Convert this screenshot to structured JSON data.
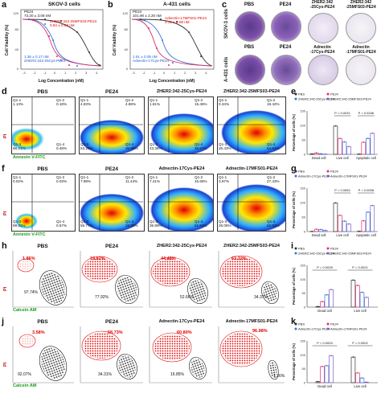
{
  "panel_letters": [
    "a",
    "b",
    "c",
    "d",
    "e",
    "f",
    "g",
    "h",
    "i",
    "j",
    "k"
  ],
  "panel_a": {
    "title": "SKOV-3 cells",
    "ylabel": "Cell Viability (%)",
    "xlabel": "Log Concentration (nM)",
    "ic50_pe24": "PE24\n73.20 ± 3.08 nM",
    "ic50_25m": "ZHER2:342-25MFS03-PE24\n0.94 ± 0.03 nM",
    "ic50_25c": "1.36 ± 0.17 nM\nZHER2:342-25Cys-PE24",
    "xticks": [
      "-3",
      "-2",
      "-1",
      "0",
      "1",
      "2",
      "3",
      "4"
    ],
    "yticks": [
      "0",
      "20",
      "40",
      "60",
      "80",
      "100",
      "120"
    ]
  },
  "panel_b": {
    "title": "A-431 cells",
    "ylabel": "Cell Viability (%)",
    "xlabel": "Log Concentration (nM)",
    "ic50_pe24": "PE24\n101.90 ± 2.20 nM",
    "ic50_17m": "Adnectin-17MFS01-PE24\n0.31 ± 0.08 nM",
    "ic50_17c": "1.51 ± 0.05 nM\nAdnectin-17Cys-PE24",
    "xticks": [
      "-3",
      "-2",
      "-1",
      "0",
      "1",
      "2",
      "3",
      "4"
    ],
    "yticks": [
      "0",
      "20",
      "40",
      "60",
      "80",
      "100",
      "120"
    ]
  },
  "panel_c": {
    "row1_label": "SKOV-3 cells",
    "row2_label": "A-431 cells",
    "row1": [
      "PBS",
      "PE24",
      "ZHER2:342\n-25Cys-PE24",
      "ZHER2:342\n-25MFS03-PE24"
    ],
    "row2": [
      "PBS",
      "PE24",
      "Adnectin\n-17Cys-PE24",
      "Adnectin\n-17MFS01-PE24"
    ]
  },
  "panel_d": {
    "titles": [
      "PBS",
      "PE24",
      "ZHER2:342-25Cys-PE24",
      "ZHER2:342-25MFS03-PE24"
    ],
    "ylabel": "PI",
    "xlabel": "Annexin V-FITC",
    "quads": [
      [
        "Q1-1\n1.13%",
        "Q1-2\n0.18%",
        "Q1-3\n98.21%",
        "Q1-4\n0.48%"
      ],
      [
        "Q1-1\n4.83%",
        "Q1-2\n4.88%",
        "Q1-3\n53.29%",
        "Q1-4\n36.98%"
      ],
      [
        "Q1-1\n1.61%",
        "Q1-2\n15.45%",
        "Q1-3\n43.38%",
        "Q1-4\n39.57%"
      ],
      [
        "Q1-1\n0.34%",
        "Q1-2\n18.42%",
        "Q1-3\n26.43%",
        "Q1-4\n54.81%"
      ]
    ]
  },
  "panel_f": {
    "titles": [
      "PBS",
      "PE24",
      "Adnectin-17Cys-PE24",
      "Adnectin-17MFS01-PE24"
    ],
    "ylabel": "PI",
    "xlabel": "Annexin V-FITC",
    "quads": [
      [
        "Q1-1\n0.02%",
        "Q1-2\n0.03%",
        "Q1-3\n99.31%",
        "Q1-4\n0.57%"
      ],
      [
        "Q1-1\n7.99%",
        "Q1-2\n11.44%",
        "Q1-3\n55.77%",
        "Q1-4\n26.09%"
      ],
      [
        "Q1-1\n7.41%",
        "Q1-2\n15.66%",
        "Q1-3\n35.89%",
        "Q1-4\n51.64%"
      ],
      [
        "Q1-1\n3.97%",
        "Q1-2\n27.43%",
        "Q1-3\n26.05%",
        "Q1-4\n62.82%"
      ]
    ]
  },
  "panel_h": {
    "titles": [
      "PBS",
      "PE24",
      "ZHER2:342-25Cys-PE24",
      "ZHER2:342-25MFS03-PE24"
    ],
    "ylabel": "PI",
    "xlabel": "Calcein AM",
    "dead": [
      "1.86%",
      "19.82%",
      "44.48%",
      "63.72%"
    ],
    "live": [
      "97.74%",
      "77.92%",
      "52.66%",
      "34.37%"
    ]
  },
  "panel_j": {
    "titles": [
      "PBS",
      "PE24",
      "Adnectin-17Cys-PE24",
      "Adnectin-17MFS01-PE24"
    ],
    "ylabel": "PI",
    "xlabel": "Calcein AM",
    "dead": [
      "3.58%",
      "58.73%",
      "60.80%",
      "96.98%"
    ],
    "live": [
      "92.07%",
      "34.31%",
      "16.85%",
      "1.36%"
    ]
  },
  "panel_e": {
    "ylabel": "Percentage of cells (%)",
    "legend": [
      "PBS",
      "PE24",
      "ZHER2:342-25Cys-PE24",
      "ZHER2:342-25MFS03-PE24"
    ],
    "categories": [
      "Dead cell",
      "Live cell",
      "Apoptotic cell"
    ],
    "pvalues": [
      "P = 0.0031",
      "P = 0.0206"
    ]
  },
  "panel_g": {
    "ylabel": "Percentage of cells (%)",
    "legend": [
      "PBS",
      "PE24",
      "Adnectin-17Cys-PE24",
      "Adnectin-17MFS01-PE24"
    ],
    "categories": [
      "Dead cell",
      "Live cell",
      "Apoptotic cell"
    ],
    "pvalues": [
      "P = 0.0052",
      "P = 0.0006"
    ]
  },
  "panel_i": {
    "ylabel": "Percentage of cells (%)",
    "legend": [
      "PBS",
      "PE24",
      "ZHER2:342-25Cys-PE24",
      "ZHER2:342-25MFS03-PE24"
    ],
    "categories": [
      "Dead cell",
      "Live cell"
    ],
    "pvalues": [
      "P = 0.0028",
      "P = 0.0021"
    ]
  },
  "panel_k": {
    "ylabel": "Percentage of cells (%)",
    "legend": [
      "PBS",
      "PE24",
      "Adnectin-17Cys-PE24",
      "Adnectin-17MFS01-PE24"
    ],
    "categories": [
      "Dead cell",
      "Live cell"
    ],
    "pvalues": [
      "P = 0.0003",
      "P = 0.0002"
    ]
  },
  "colors": {
    "pbs": "#333333",
    "pe24": "#e0306a",
    "cys": "#3a6fd8",
    "mfs": "#7a60c8"
  },
  "chart_data": [
    {
      "type": "bar",
      "id": "e",
      "categories": [
        "Dead cell",
        "Live cell",
        "Apoptotic cell"
      ],
      "series": [
        {
          "name": "PBS",
          "values": [
            1.5,
            98,
            1
          ]
        },
        {
          "name": "PE24",
          "values": [
            5,
            55,
            42
          ]
        },
        {
          "name": "ZHER2:342-25Cys-PE24",
          "values": [
            2,
            43,
            55
          ]
        },
        {
          "name": "ZHER2:342-25MFS03-PE24",
          "values": [
            1,
            27,
            73
          ]
        }
      ],
      "ylim": [
        0,
        150
      ]
    },
    {
      "type": "bar",
      "id": "g",
      "categories": [
        "Dead cell",
        "Live cell",
        "Apoptotic cell"
      ],
      "series": [
        {
          "name": "PBS",
          "values": [
            0.5,
            99,
            1
          ]
        },
        {
          "name": "PE24",
          "values": [
            8,
            56,
            37
          ]
        },
        {
          "name": "Adnectin-17Cys-PE24",
          "values": [
            7,
            36,
            67
          ]
        },
        {
          "name": "Adnectin-17MFS01-PE24",
          "values": [
            4,
            26,
            90
          ]
        }
      ],
      "ylim": [
        0,
        150
      ]
    },
    {
      "type": "bar",
      "id": "i",
      "categories": [
        "Dead cell",
        "Live cell"
      ],
      "series": [
        {
          "name": "PBS",
          "values": [
            2,
            97
          ]
        },
        {
          "name": "PE24",
          "values": [
            20,
            78
          ]
        },
        {
          "name": "ZHER2:342-25Cys-PE24",
          "values": [
            44,
            53
          ]
        },
        {
          "name": "ZHER2:342-25MFS03-PE24",
          "values": [
            63,
            35
          ]
        }
      ],
      "ylim": [
        0,
        150
      ]
    },
    {
      "type": "bar",
      "id": "k",
      "categories": [
        "Dead cell",
        "Live cell"
      ],
      "series": [
        {
          "name": "PBS",
          "values": [
            4,
            92
          ]
        },
        {
          "name": "PE24",
          "values": [
            58,
            35
          ]
        },
        {
          "name": "Adnectin-17Cys-PE24",
          "values": [
            61,
            17
          ]
        },
        {
          "name": "Adnectin-17MFS01-PE24",
          "values": [
            97,
            2
          ]
        }
      ],
      "ylim": [
        0,
        150
      ]
    }
  ]
}
